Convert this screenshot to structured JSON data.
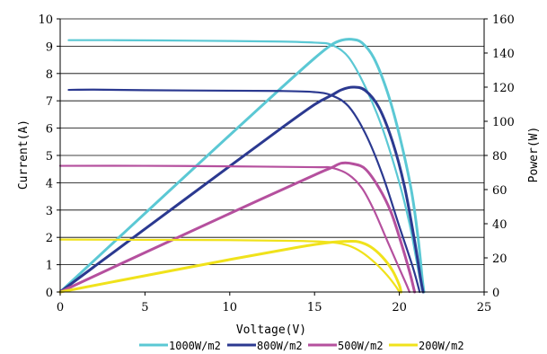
{
  "chart_data": {
    "type": "line",
    "title": "",
    "x_axis": {
      "label": "Voltage(V)",
      "range": [
        0,
        25
      ],
      "ticks": [
        0,
        5,
        10,
        15,
        20,
        25
      ]
    },
    "y_left": {
      "label": "Current(A)",
      "range": [
        0,
        10
      ],
      "ticks": [
        0,
        1,
        2,
        3,
        4,
        5,
        6,
        7,
        8,
        9,
        10
      ]
    },
    "y_right": {
      "label": "Power(W)",
      "range": [
        0,
        160
      ],
      "ticks": [
        0,
        20,
        40,
        60,
        80,
        100,
        120,
        140,
        160
      ]
    },
    "grid": {
      "horizontal": true,
      "vertical": false
    },
    "legend_position": "bottom",
    "series": [
      {
        "name": "1000W/m2",
        "color": "#5BC8D4",
        "iv": [
          [
            0.5,
            9.22
          ],
          [
            3,
            9.22
          ],
          [
            6,
            9.21
          ],
          [
            10,
            9.19
          ],
          [
            13,
            9.17
          ],
          [
            15,
            9.13
          ],
          [
            16,
            9.05
          ],
          [
            17,
            8.6
          ],
          [
            18,
            7.5
          ],
          [
            19,
            6.0
          ],
          [
            20,
            4.0
          ],
          [
            20.6,
            2.5
          ],
          [
            21.0,
            1.2
          ],
          [
            21.3,
            0.2
          ],
          [
            21.4,
            0
          ]
        ],
        "pv": [
          [
            0,
            0
          ],
          [
            3,
            27.66
          ],
          [
            6,
            55.26
          ],
          [
            10,
            91.9
          ],
          [
            13,
            119.21
          ],
          [
            15,
            136.95
          ],
          [
            16,
            144.8
          ],
          [
            16.6,
            147.5
          ],
          [
            17.2,
            148
          ],
          [
            17.8,
            146
          ],
          [
            18.5,
            137
          ],
          [
            19.3,
            117
          ],
          [
            20,
            92
          ],
          [
            20.7,
            60
          ],
          [
            21.1,
            32
          ],
          [
            21.35,
            8
          ],
          [
            21.45,
            0
          ]
        ]
      },
      {
        "name": "800W/m2",
        "color": "#2B3990",
        "iv": [
          [
            0.5,
            7.4
          ],
          [
            2,
            7.41
          ],
          [
            5,
            7.39
          ],
          [
            10,
            7.37
          ],
          [
            13,
            7.36
          ],
          [
            15,
            7.32
          ],
          [
            16,
            7.2
          ],
          [
            17,
            6.8
          ],
          [
            18,
            5.8
          ],
          [
            19,
            4.3
          ],
          [
            20,
            2.4
          ],
          [
            20.8,
            0.9
          ],
          [
            21.2,
            0
          ]
        ],
        "pv": [
          [
            0,
            0
          ],
          [
            2,
            14.82
          ],
          [
            5,
            36.95
          ],
          [
            10,
            73.7
          ],
          [
            13,
            95.68
          ],
          [
            15,
            109.8
          ],
          [
            16,
            115.2
          ],
          [
            16.6,
            118.5
          ],
          [
            17.3,
            120
          ],
          [
            18,
            118
          ],
          [
            18.8,
            108
          ],
          [
            19.6,
            88
          ],
          [
            20.3,
            62
          ],
          [
            20.9,
            30
          ],
          [
            21.25,
            8
          ],
          [
            21.4,
            0
          ]
        ]
      },
      {
        "name": "500W/m2",
        "color": "#B5509E",
        "iv": [
          [
            0,
            4.62
          ],
          [
            5,
            4.62
          ],
          [
            10,
            4.6
          ],
          [
            15,
            4.57
          ],
          [
            16,
            4.55
          ],
          [
            17,
            4.3
          ],
          [
            17.8,
            3.8
          ],
          [
            18.5,
            3.0
          ],
          [
            19.2,
            2.0
          ],
          [
            19.9,
            1.0
          ],
          [
            20.4,
            0.3
          ],
          [
            20.6,
            0
          ]
        ],
        "pv": [
          [
            0,
            0
          ],
          [
            5,
            23.1
          ],
          [
            10,
            46
          ],
          [
            15,
            68.55
          ],
          [
            16,
            72.8
          ],
          [
            16.6,
            75.5
          ],
          [
            17.3,
            75
          ],
          [
            18,
            72
          ],
          [
            18.8,
            61
          ],
          [
            19.5,
            47
          ],
          [
            20.1,
            29
          ],
          [
            20.6,
            12
          ],
          [
            20.9,
            0
          ]
        ]
      },
      {
        "name": "200W/m2",
        "color": "#F0E21B",
        "iv": [
          [
            0,
            1.92
          ],
          [
            5,
            1.91
          ],
          [
            10,
            1.9
          ],
          [
            14,
            1.87
          ],
          [
            16,
            1.82
          ],
          [
            17,
            1.7
          ],
          [
            17.8,
            1.45
          ],
          [
            18.6,
            1.05
          ],
          [
            19.3,
            0.6
          ],
          [
            19.8,
            0.2
          ],
          [
            20,
            0
          ]
        ],
        "pv": [
          [
            0,
            0
          ],
          [
            5,
            9.55
          ],
          [
            10,
            19
          ],
          [
            14,
            26.18
          ],
          [
            16,
            29.12
          ],
          [
            17,
            29.7
          ],
          [
            17.6,
            29.4
          ],
          [
            18.3,
            26.5
          ],
          [
            19,
            20.5
          ],
          [
            19.6,
            12.5
          ],
          [
            20,
            4
          ],
          [
            20.1,
            0
          ]
        ]
      }
    ]
  }
}
